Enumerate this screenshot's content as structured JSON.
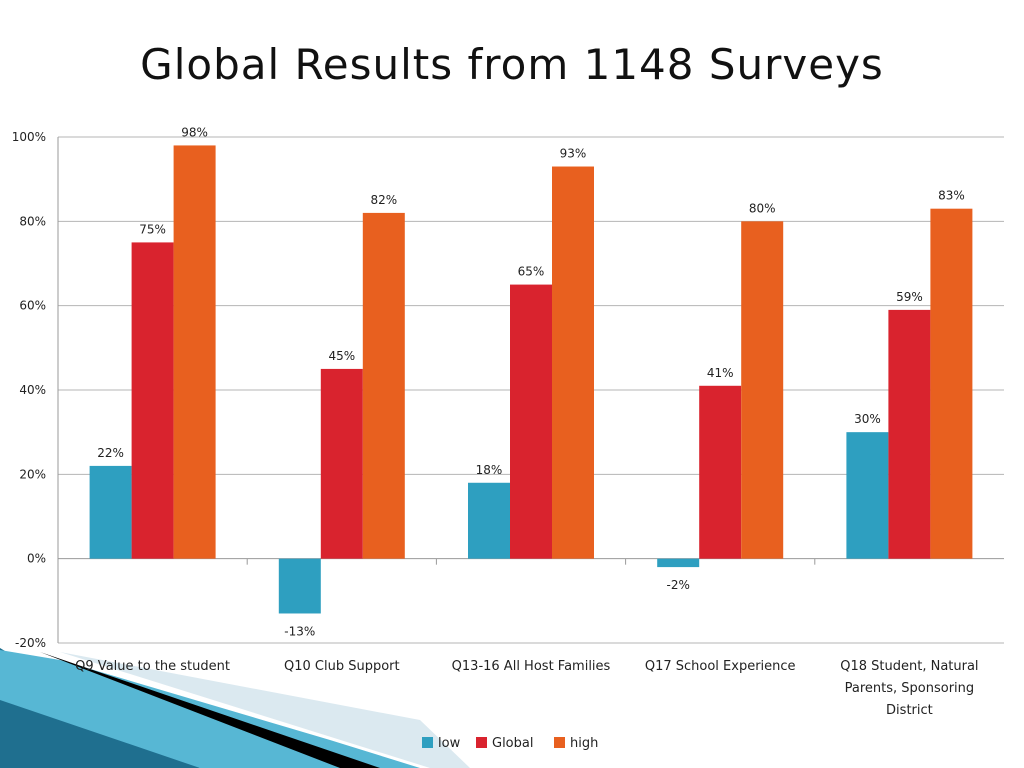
{
  "slide": {
    "title": "Global Results from 1148 Surveys"
  },
  "chart_data": {
    "type": "bar",
    "title": "",
    "xlabel": "",
    "ylabel": "",
    "ylim": [
      -20,
      100
    ],
    "yticks": [
      -20,
      0,
      20,
      40,
      60,
      80,
      100
    ],
    "ytick_labels": [
      "-20%",
      "0%",
      "20%",
      "40%",
      "60%",
      "80%",
      "100%"
    ],
    "grid": true,
    "legend_position": "bottom",
    "categories": [
      [
        "Q9 Value to the student"
      ],
      [
        "Q10 Club Support"
      ],
      [
        "Q13-16 All Host Families"
      ],
      [
        "Q17 School Experience"
      ],
      [
        "Q18 Student, Natural",
        "Parents, Sponsoring",
        "District"
      ]
    ],
    "series": [
      {
        "name": "low",
        "color": "#2e9fc0",
        "values": [
          22,
          -13,
          18,
          -2,
          30
        ],
        "labels": [
          "22%",
          "-13%",
          "18%",
          "-2%",
          "30%"
        ]
      },
      {
        "name": "Global",
        "color": "#d9232e",
        "values": [
          75,
          45,
          65,
          41,
          59
        ],
        "labels": [
          "75%",
          "45%",
          "65%",
          "41%",
          "59%"
        ]
      },
      {
        "name": "high",
        "color": "#e8601f",
        "values": [
          98,
          82,
          93,
          80,
          83
        ],
        "labels": [
          "98%",
          "82%",
          "93%",
          "80%",
          "83%"
        ]
      }
    ]
  }
}
